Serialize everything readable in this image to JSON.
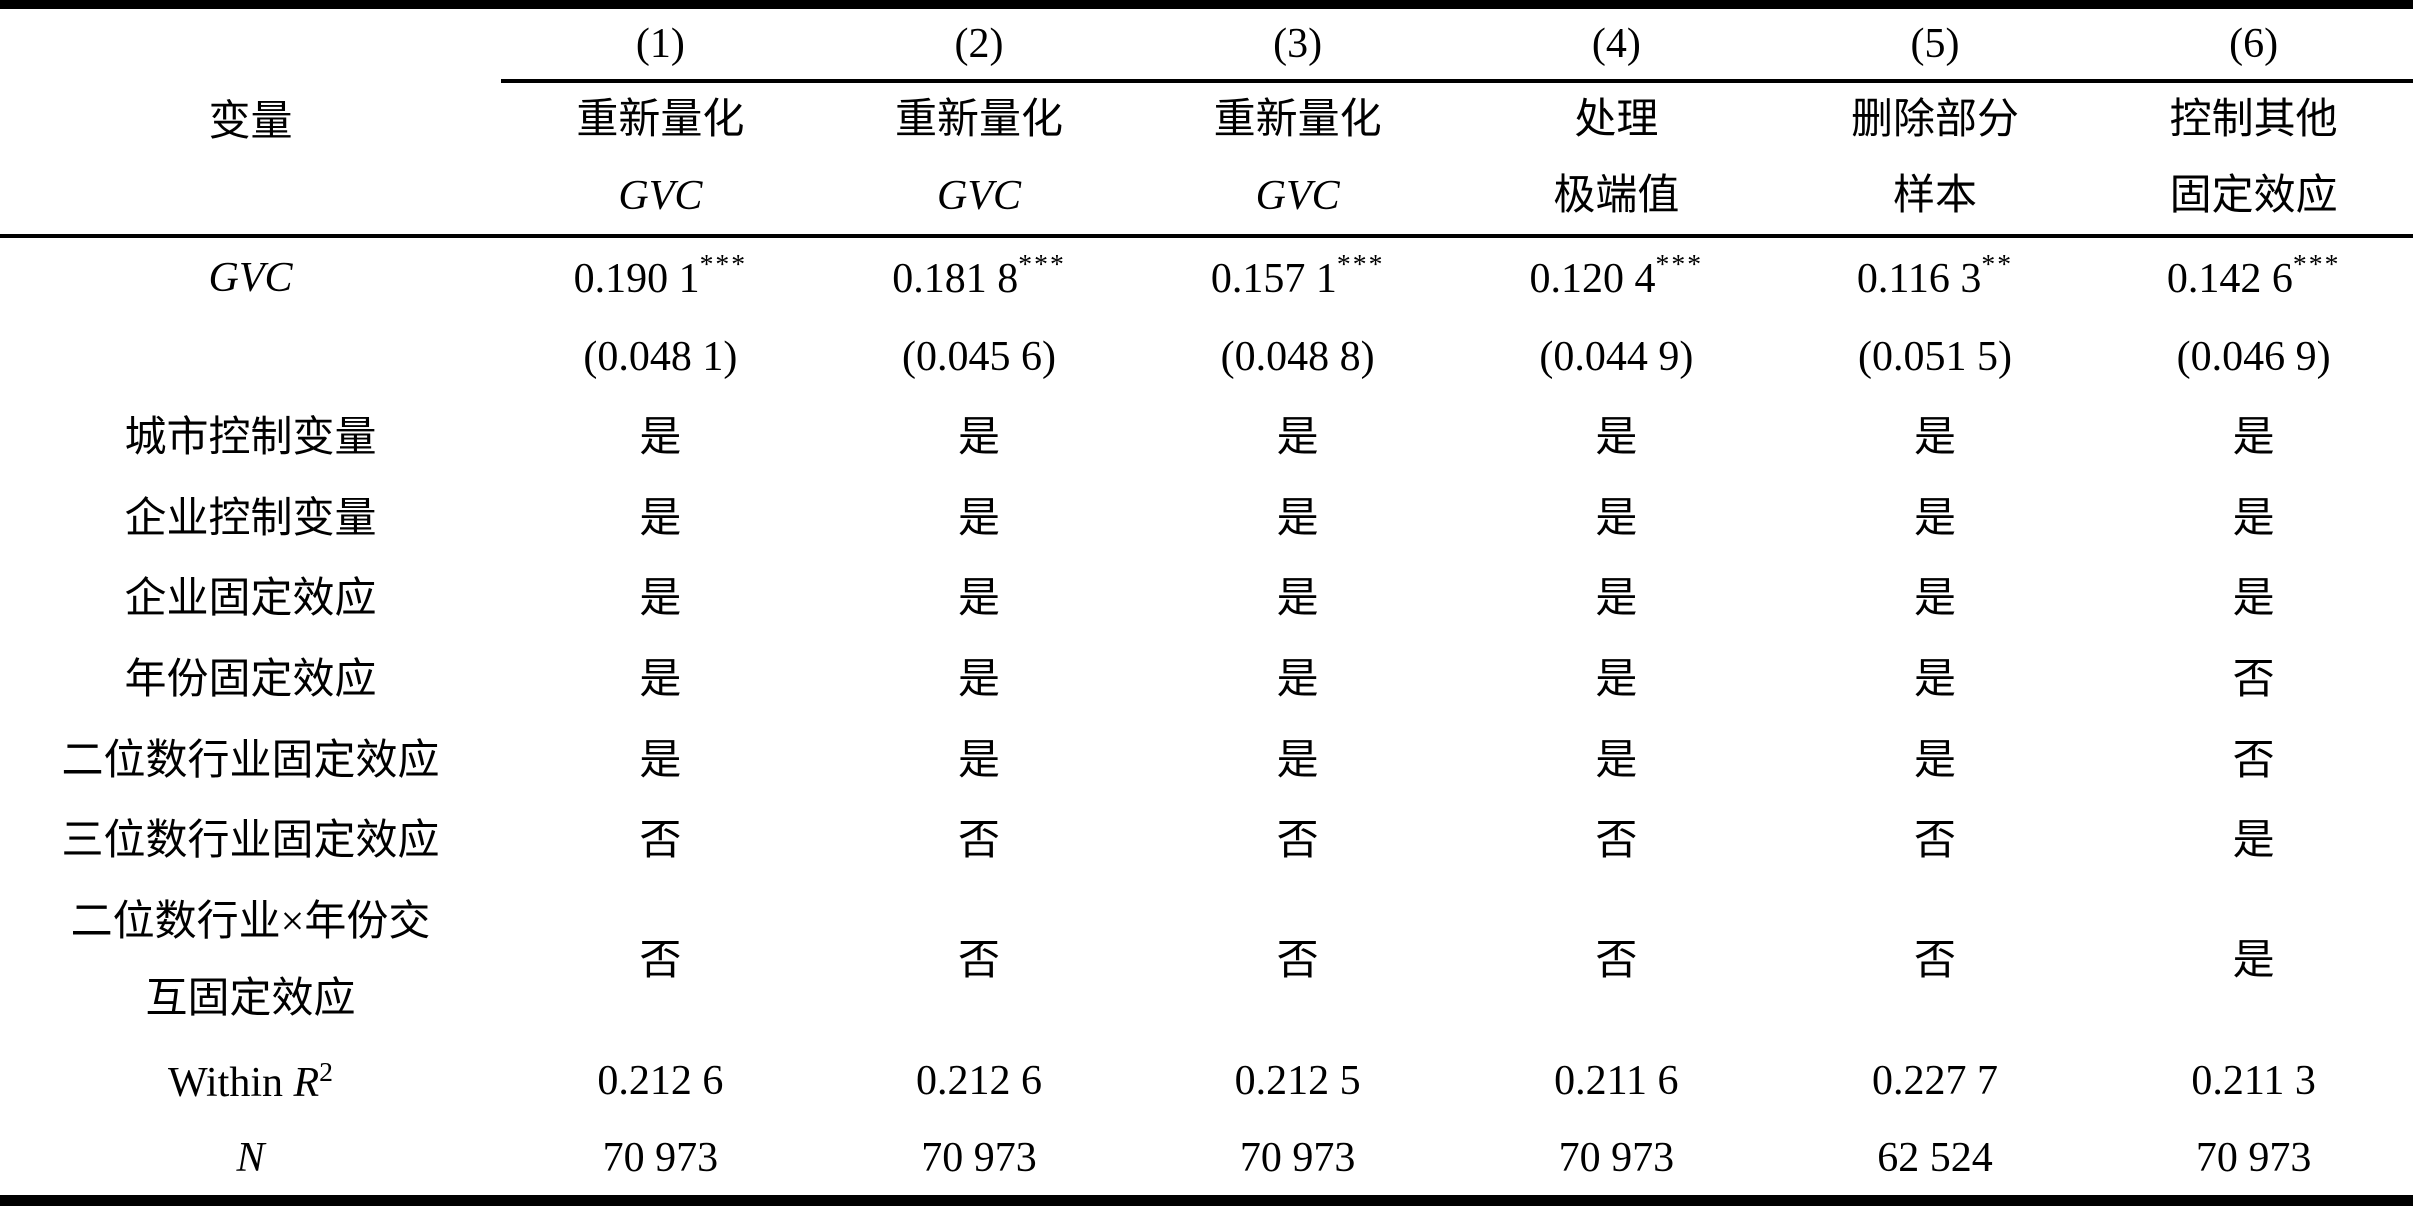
{
  "table": {
    "header": {
      "variable_label": "变量",
      "column_numbers": [
        "(1)",
        "(2)",
        "(3)",
        "(4)",
        "(5)",
        "(6)"
      ],
      "titles_line1": [
        "重新量化",
        "重新量化",
        "重新量化",
        "处理",
        "删除部分",
        "控制其他"
      ],
      "titles_line2": [
        "GVC",
        "GVC",
        "GVC",
        "极端值",
        "样本",
        "固定效应"
      ]
    },
    "rows": {
      "gvc_coef": {
        "label": "GVC",
        "values": [
          "0.190 1",
          "0.181 8",
          "0.157 1",
          "0.120 4",
          "0.116 3",
          "0.142 6"
        ],
        "stars": [
          "***",
          "***",
          "***",
          "***",
          "**",
          "***"
        ]
      },
      "gvc_se": {
        "label": "",
        "values": [
          "(0.048 1)",
          "(0.045 6)",
          "(0.048 8)",
          "(0.044 9)",
          "(0.051 5)",
          "(0.046 9)"
        ]
      },
      "city_controls": {
        "label": "城市控制变量",
        "values": [
          "是",
          "是",
          "是",
          "是",
          "是",
          "是"
        ]
      },
      "firm_controls": {
        "label": "企业控制变量",
        "values": [
          "是",
          "是",
          "是",
          "是",
          "是",
          "是"
        ]
      },
      "firm_fe": {
        "label": "企业固定效应",
        "values": [
          "是",
          "是",
          "是",
          "是",
          "是",
          "是"
        ]
      },
      "year_fe": {
        "label": "年份固定效应",
        "values": [
          "是",
          "是",
          "是",
          "是",
          "是",
          "否"
        ]
      },
      "ind2_fe": {
        "label": "二位数行业固定效应",
        "values": [
          "是",
          "是",
          "是",
          "是",
          "是",
          "否"
        ]
      },
      "ind3_fe": {
        "label": "三位数行业固定效应",
        "values": [
          "否",
          "否",
          "否",
          "否",
          "否",
          "是"
        ]
      },
      "ind2_year_fe": {
        "label_line1": "二位数行业×年份交",
        "label_line2": "互固定效应",
        "values": [
          "否",
          "否",
          "否",
          "否",
          "否",
          "是"
        ]
      },
      "within_r2": {
        "label_prefix": "Within ",
        "label_symbol": "R",
        "label_sup": "2",
        "values": [
          "0.212 6",
          "0.212 6",
          "0.212 5",
          "0.211 6",
          "0.227 7",
          "0.211 3"
        ]
      },
      "n": {
        "label": "N",
        "values": [
          "70 973",
          "70 973",
          "70 973",
          "70 973",
          "62 524",
          "70 973"
        ]
      }
    }
  }
}
